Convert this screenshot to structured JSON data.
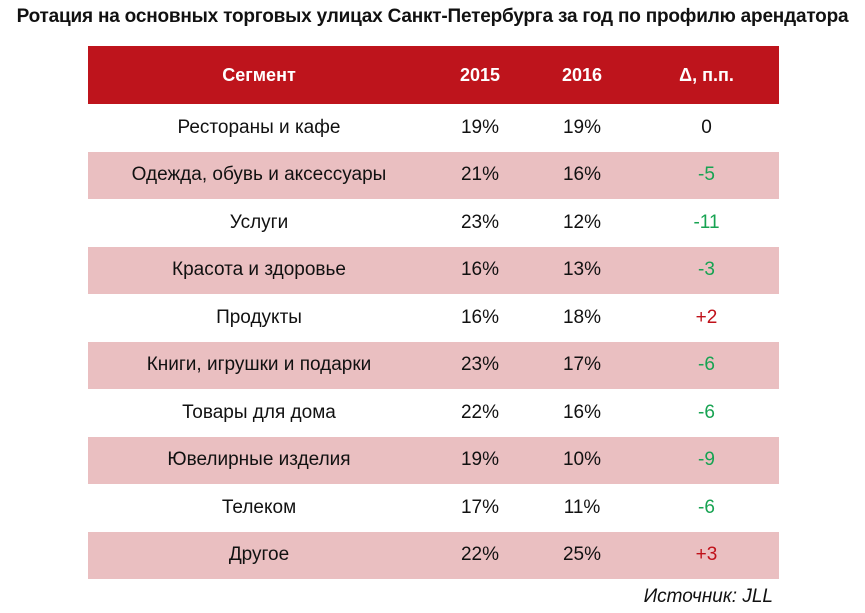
{
  "chart_data": {
    "type": "table",
    "title": "Ротация на основных торговых улицах Санкт-Петербурга за год по профилю арендатора",
    "columns": [
      "Сегмент",
      "2015",
      "2016",
      "Δ, п.п."
    ],
    "rows": [
      {
        "segment": "Рестораны и кафе",
        "y2015": "19%",
        "y2016": "19%",
        "delta": "0",
        "delta_value": 0
      },
      {
        "segment": "Одежда, обувь и аксессуары",
        "y2015": "21%",
        "y2016": "16%",
        "delta": "-5",
        "delta_value": -5
      },
      {
        "segment": "Услуги",
        "y2015": "23%",
        "y2016": "12%",
        "delta": "-11",
        "delta_value": -11
      },
      {
        "segment": "Красота и здоровье",
        "y2015": "16%",
        "y2016": "13%",
        "delta": "-3",
        "delta_value": -3
      },
      {
        "segment": "Продукты",
        "y2015": "16%",
        "y2016": "18%",
        "delta": "+2",
        "delta_value": 2
      },
      {
        "segment": "Книги, игрушки и подарки",
        "y2015": "23%",
        "y2016": "17%",
        "delta": "-6",
        "delta_value": -6
      },
      {
        "segment": "Товары для дома",
        "y2015": "22%",
        "y2016": "16%",
        "delta": "-6",
        "delta_value": -6
      },
      {
        "segment": "Ювелирные изделия",
        "y2015": "19%",
        "y2016": "10%",
        "delta": "-9",
        "delta_value": -9
      },
      {
        "segment": "Телеком",
        "y2015": "17%",
        "y2016": "11%",
        "delta": "-6",
        "delta_value": -6
      },
      {
        "segment": "Другое",
        "y2015": "22%",
        "y2016": "25%",
        "delta": "+3",
        "delta_value": 3
      }
    ],
    "source": "Источник: JLL",
    "colors": {
      "header_bg": "#be141c",
      "alt_row_bg": "#eabfc1",
      "negative": "#17a352",
      "positive": "#c0111a"
    }
  }
}
